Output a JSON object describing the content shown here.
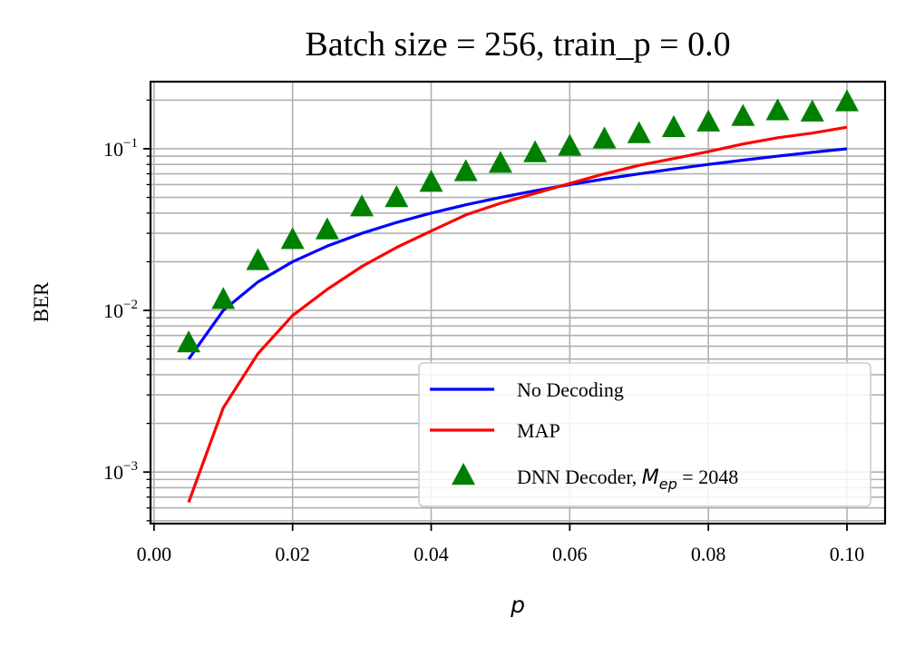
{
  "chart_data": {
    "type": "line",
    "title": "Batch size = 256, train_p = 0.0",
    "xlabel": "p",
    "ylabel": "BER",
    "x_scale": "linear",
    "y_scale": "log",
    "xlim": [
      -0.0005,
      0.1055
    ],
    "ylim": [
      0.00048,
      0.26
    ],
    "x_ticks": [
      0.0,
      0.02,
      0.04,
      0.06,
      0.08,
      0.1
    ],
    "x_tick_labels": [
      "0.00",
      "0.02",
      "0.04",
      "0.06",
      "0.08",
      "0.10"
    ],
    "y_ticks": [
      0.001,
      0.01,
      0.1
    ],
    "y_tick_labels": [
      {
        "base": "10",
        "exp": "−3"
      },
      {
        "base": "10",
        "exp": "−2"
      },
      {
        "base": "10",
        "exp": "−1"
      }
    ],
    "grid": true,
    "legend_position": "lower right",
    "series": [
      {
        "name": "No Decoding",
        "kind": "line",
        "color": "#0000ff",
        "x": [
          0.005,
          0.01,
          0.015,
          0.02,
          0.025,
          0.03,
          0.035,
          0.04,
          0.045,
          0.05,
          0.055,
          0.06,
          0.065,
          0.07,
          0.075,
          0.08,
          0.085,
          0.09,
          0.095,
          0.1
        ],
        "y": [
          0.005,
          0.01,
          0.015,
          0.02,
          0.025,
          0.03,
          0.035,
          0.04,
          0.045,
          0.05,
          0.055,
          0.06,
          0.065,
          0.07,
          0.075,
          0.08,
          0.085,
          0.09,
          0.095,
          0.1
        ]
      },
      {
        "name": "MAP",
        "kind": "line",
        "color": "#ff0000",
        "x": [
          0.005,
          0.01,
          0.015,
          0.02,
          0.025,
          0.03,
          0.035,
          0.04,
          0.045,
          0.05,
          0.055,
          0.06,
          0.065,
          0.07,
          0.075,
          0.08,
          0.085,
          0.09,
          0.095,
          0.1
        ],
        "y": [
          0.00065,
          0.0025,
          0.0054,
          0.0093,
          0.0135,
          0.0187,
          0.0245,
          0.031,
          0.039,
          0.046,
          0.053,
          0.061,
          0.07,
          0.079,
          0.087,
          0.096,
          0.107,
          0.117,
          0.125,
          0.136
        ]
      },
      {
        "name_prefix": "DNN Decoder, ",
        "name_math": "M",
        "name_math_sub": "ep",
        "name_suffix": " = 2048",
        "kind": "scatter",
        "marker": "triangle",
        "color": "#008000",
        "x": [
          0.005,
          0.01,
          0.015,
          0.02,
          0.025,
          0.03,
          0.035,
          0.04,
          0.045,
          0.05,
          0.055,
          0.06,
          0.065,
          0.07,
          0.075,
          0.08,
          0.085,
          0.09,
          0.095,
          0.1
        ],
        "y": [
          0.0062,
          0.0115,
          0.02,
          0.027,
          0.031,
          0.043,
          0.049,
          0.061,
          0.071,
          0.08,
          0.093,
          0.102,
          0.113,
          0.122,
          0.133,
          0.144,
          0.156,
          0.169,
          0.166,
          0.192
        ]
      }
    ]
  }
}
